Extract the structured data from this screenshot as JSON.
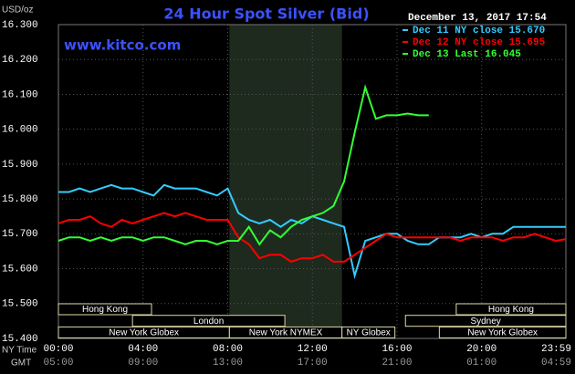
{
  "chart_data": {
    "type": "line",
    "title": "24 Hour Spot Silver (Bid)",
    "timestamp": "December 13, 2017 17:54",
    "website": "www.kitco.com",
    "y_label": "USD/oz",
    "x_label": "NY Time",
    "x2_label": "GMT",
    "x": [
      0,
      0.5,
      1,
      1.5,
      2,
      2.5,
      3,
      3.5,
      4,
      4.5,
      5,
      5.5,
      6,
      6.5,
      7,
      7.5,
      8,
      8.5,
      9,
      9.5,
      10,
      10.5,
      11,
      11.5,
      12,
      12.5,
      13,
      13.5,
      14,
      14.5,
      15,
      15.5,
      16,
      16.5,
      17,
      17.5,
      18,
      18.5,
      19,
      19.5,
      20,
      20.5,
      21,
      21.5,
      22,
      22.5,
      23,
      23.5,
      23.98
    ],
    "series": [
      {
        "name": "Dec 11 NY close 15.670",
        "color": "#33ccff",
        "values": [
          15.82,
          15.82,
          15.83,
          15.82,
          15.83,
          15.84,
          15.83,
          15.83,
          15.82,
          15.81,
          15.84,
          15.83,
          15.83,
          15.83,
          15.82,
          15.81,
          15.83,
          15.76,
          15.74,
          15.73,
          15.74,
          15.72,
          15.74,
          15.73,
          15.75,
          15.74,
          15.73,
          15.72,
          15.58,
          15.68,
          15.69,
          15.7,
          15.7,
          15.68,
          15.67,
          15.67,
          15.69,
          15.69,
          15.69,
          15.7,
          15.69,
          15.7,
          15.7,
          15.72,
          15.72,
          15.72,
          15.72,
          15.72,
          15.72
        ]
      },
      {
        "name": "Dec 12 NY close 15.695",
        "color": "#ff0000",
        "values": [
          15.73,
          15.74,
          15.74,
          15.75,
          15.73,
          15.72,
          15.74,
          15.73,
          15.74,
          15.75,
          15.76,
          15.75,
          15.76,
          15.75,
          15.74,
          15.74,
          15.74,
          15.69,
          15.67,
          15.63,
          15.64,
          15.64,
          15.62,
          15.63,
          15.63,
          15.64,
          15.62,
          15.62,
          15.64,
          15.66,
          15.68,
          15.7,
          15.69,
          15.69,
          15.69,
          15.69,
          15.69,
          15.69,
          15.68,
          15.69,
          15.69,
          15.69,
          15.68,
          15.69,
          15.69,
          15.7,
          15.69,
          15.68,
          15.685
        ]
      },
      {
        "name": "Dec 13 Last 16.045",
        "color": "#33ff33",
        "values": [
          15.68,
          15.69,
          15.69,
          15.68,
          15.69,
          15.68,
          15.69,
          15.69,
          15.68,
          15.69,
          15.69,
          15.68,
          15.67,
          15.68,
          15.68,
          15.67,
          15.68,
          15.68,
          15.72,
          15.67,
          15.71,
          15.69,
          15.72,
          15.74,
          15.75,
          15.76,
          15.78,
          15.85,
          15.99,
          16.12,
          16.03,
          16.04,
          16.04,
          16.045,
          16.04,
          16.04,
          null,
          null,
          null,
          null,
          null,
          null,
          null,
          null,
          null,
          null,
          null,
          null,
          null
        ]
      }
    ],
    "xlim": [
      0,
      23.98
    ],
    "xticks": [
      {
        "value": 0,
        "label": "00:00"
      },
      {
        "value": 4,
        "label": "04:00"
      },
      {
        "value": 8,
        "label": "08:00"
      },
      {
        "value": 12,
        "label": "12:00"
      },
      {
        "value": 16,
        "label": "16:00"
      },
      {
        "value": 20,
        "label": "20:00"
      },
      {
        "value": 23.98,
        "label": "23:59"
      }
    ],
    "gmt_labels": [
      "05:00",
      "09:00",
      "13:00",
      "17:00",
      "21:00",
      "01:00",
      "04:59"
    ],
    "ylim": [
      15.4,
      16.3
    ],
    "yticks": [
      {
        "value": 15.4,
        "label": "15.400"
      },
      {
        "value": 15.5,
        "label": "15.500"
      },
      {
        "value": 15.6,
        "label": "15.600"
      },
      {
        "value": 15.7,
        "label": "15.700"
      },
      {
        "value": 15.8,
        "label": "15.800"
      },
      {
        "value": 15.9,
        "label": "15.900"
      },
      {
        "value": 16.0,
        "label": "16.000"
      },
      {
        "value": 16.1,
        "label": "16.100"
      },
      {
        "value": 16.2,
        "label": "16.200"
      },
      {
        "value": 16.3,
        "label": "16.300"
      }
    ],
    "grid": true,
    "session_rows": [
      [
        {
          "name": "Hong Kong",
          "start": 0,
          "end": 4.4
        },
        {
          "name": "Hong Kong",
          "start": 18.8,
          "end": 23.98
        }
      ],
      [
        {
          "name": "London",
          "start": 3.5,
          "end": 10.7
        },
        {
          "name": "Sydney",
          "start": 16.4,
          "end": 23.98
        }
      ],
      [
        {
          "name": "New York Globex",
          "start": 0,
          "end": 8.08
        },
        {
          "name": "New York NYMEX",
          "start": 8.08,
          "end": 13.4
        },
        {
          "name": "NY Globex",
          "start": 13.4,
          "end": 15.9
        },
        {
          "name": "New York Globex",
          "start": 18,
          "end": 23.98
        }
      ]
    ]
  }
}
